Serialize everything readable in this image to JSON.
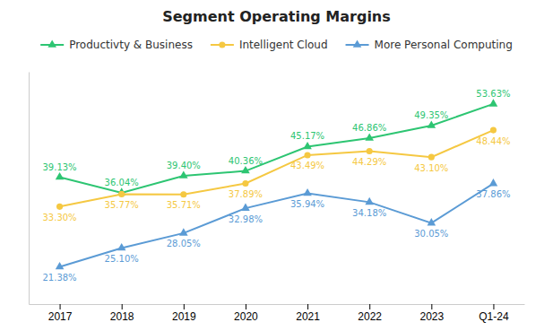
{
  "chart_data": {
    "type": "line",
    "title": "Segment Operating Margins",
    "categories": [
      "2017",
      "2018",
      "2019",
      "2020",
      "2021",
      "2022",
      "2023",
      "Q1-24"
    ],
    "series": [
      {
        "name": "Productivty & Business",
        "color": "#2DC572",
        "marker": "triangle",
        "values": [
          39.13,
          36.04,
          39.4,
          40.36,
          45.17,
          46.86,
          49.35,
          53.63
        ],
        "value_labels": [
          "39.13%",
          "36.04%",
          "39.40%",
          "40.36%",
          "45.17%",
          "46.86%",
          "49.35%",
          "53.63%"
        ]
      },
      {
        "name": "Intelligent Cloud",
        "color": "#F5C842",
        "marker": "circle",
        "values": [
          33.3,
          35.77,
          35.71,
          37.89,
          43.49,
          44.29,
          43.1,
          48.44
        ],
        "value_labels": [
          "33.30%",
          "35.77%",
          "35.71%",
          "37.89%",
          "43.49%",
          "44.29%",
          "43.10%",
          "48.44%"
        ]
      },
      {
        "name": "More Personal Computing",
        "color": "#5B9BD5",
        "marker": "triangle",
        "values": [
          21.38,
          25.1,
          28.05,
          32.98,
          35.94,
          34.18,
          30.05,
          37.86
        ],
        "value_labels": [
          "21.38%",
          "25.10%",
          "28.05%",
          "32.98%",
          "35.94%",
          "34.18%",
          "30.05%",
          "37.86%"
        ]
      }
    ],
    "ylim": [
      14,
      60
    ],
    "tick_labels": "x",
    "grid": false,
    "legend": "top",
    "data_labels": true
  }
}
